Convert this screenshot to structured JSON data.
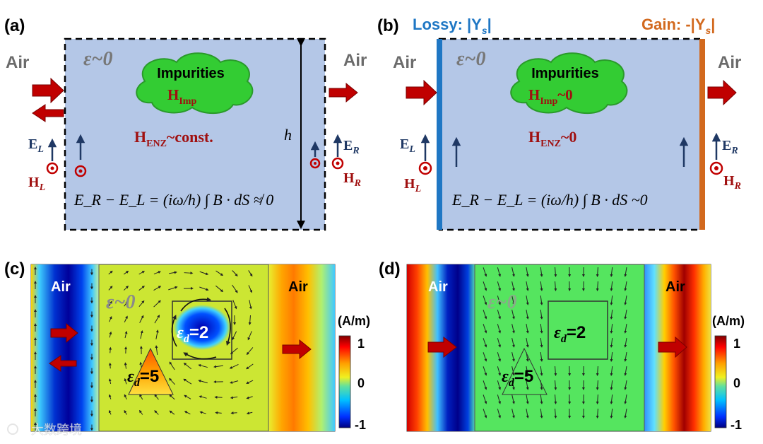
{
  "colors": {
    "enz_fill": "#b4c7e7",
    "cloud": "#33cc33",
    "arrow_red": "#c00000",
    "field_blue": "#1f3864",
    "lossy": "#1f77c4",
    "gain": "#d2691e",
    "map_bg_c": "#cce633",
    "map_bg_d": "#55e55f"
  },
  "panel_a": {
    "tag": "(a)",
    "air_left": "Air",
    "air_right": "Air",
    "eps": "ε~0",
    "impurities": "Impurities",
    "h_imp": "H",
    "h_imp_sub": "Imp",
    "h_enz": "H",
    "h_enz_sub": "ENZ",
    "h_enz_tail": "~const.",
    "h_label": "h",
    "e_l": "E",
    "e_l_sub": "L",
    "h_l": "H",
    "h_l_sub": "L",
    "e_r": "E",
    "e_r_sub": "R",
    "h_r": "H",
    "h_r_sub": "R",
    "equation": "E_R − E_L = (iω/h) ∫ B · dS ≉ 0"
  },
  "panel_b": {
    "tag": "(b)",
    "lossy": "Lossy: |Y",
    "lossy_sub": "s",
    "lossy_tail": "|",
    "gain": "Gain: -|Y",
    "gain_sub": "s",
    "gain_tail": "|",
    "air_left": "Air",
    "air_right": "Air",
    "eps": "ε~0",
    "impurities": "Impurities",
    "h_imp": "H",
    "h_imp_sub": "Imp",
    "h_imp_tail": "~0",
    "h_enz": "H",
    "h_enz_sub": "ENZ",
    "h_enz_tail": "~0",
    "e_l": "E",
    "e_l_sub": "L",
    "h_l": "H",
    "h_l_sub": "L",
    "e_r": "E",
    "e_r_sub": "R",
    "h_r": "H",
    "h_r_sub": "R",
    "equation": "E_R − E_L = (iω/h) ∫ B · dS ~0"
  },
  "panel_c": {
    "tag": "(c)",
    "air_left": "Air",
    "air_right": "Air",
    "eps": "ε~0",
    "eps_d2": "ε",
    "eps_d2_sub": "d",
    "eps_d2_tail": "=2",
    "eps_d5": "ε",
    "eps_d5_sub": "d",
    "eps_d5_tail": "=5",
    "unit": "(A/m)",
    "tick_top": "1",
    "tick_mid": "0",
    "tick_bot": "-1"
  },
  "panel_d": {
    "tag": "(d)",
    "air_left": "Air",
    "air_right": "Air",
    "eps": "ε~0",
    "eps_d2": "ε",
    "eps_d2_sub": "d",
    "eps_d2_tail": "=2",
    "eps_d5": "ε",
    "eps_d5_sub": "d",
    "eps_d5_tail": "=5",
    "unit": "(A/m)",
    "tick_top": "1",
    "tick_mid": "0",
    "tick_bot": "-1"
  },
  "watermark": "大数跨境"
}
